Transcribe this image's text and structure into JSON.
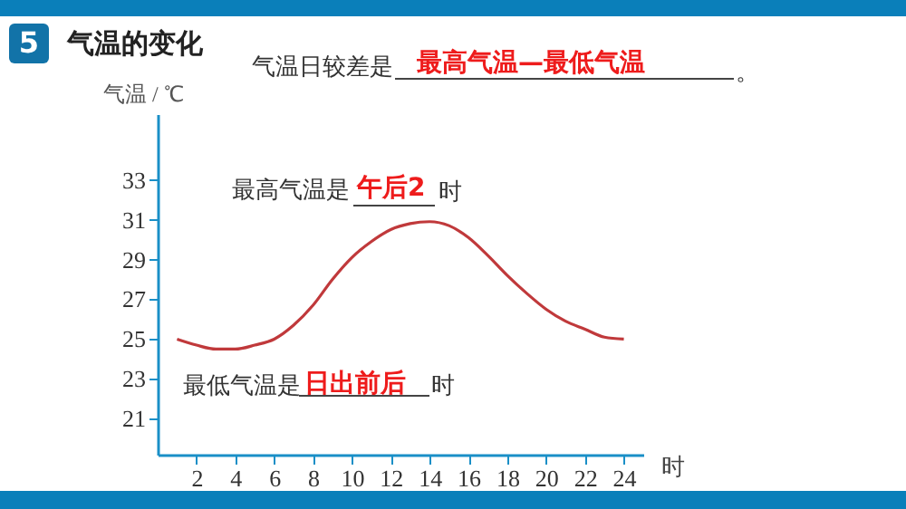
{
  "chart_data": {
    "type": "line",
    "title": "气温的变化",
    "ylabel": "气温 / ℃",
    "xlabel": "时",
    "annotations": [
      "5",
      "气温日较差是",
      "最高气温—最低气温",
      "。",
      "最高气温是",
      "午后2",
      "时",
      "最低气温是",
      "日出前后",
      "时"
    ],
    "x": [
      1,
      2,
      3,
      4,
      5,
      6,
      7,
      8,
      9,
      10,
      11,
      12,
      13,
      14,
      15,
      16,
      17,
      18,
      19,
      20,
      21,
      22,
      23,
      24
    ],
    "series": [
      {
        "color": "#c0393b",
        "values": [
          25.0,
          24.7,
          24.5,
          24.5,
          24.7,
          25.0,
          25.7,
          26.7,
          28.0,
          29.1,
          29.9,
          30.5,
          30.8,
          30.9,
          30.7,
          30.1,
          29.2,
          28.2,
          27.3,
          26.5,
          25.9,
          25.5,
          25.1,
          25.0
        ]
      }
    ],
    "xlim": [
      0,
      25
    ],
    "xticks": [
      2,
      4,
      6,
      8,
      10,
      12,
      14,
      16,
      18,
      20,
      22,
      24
    ],
    "ylim": [
      19.2,
      36.3
    ],
    "yticks": [
      21,
      23,
      25,
      27,
      29,
      31,
      33
    ],
    "grid": false
  }
}
